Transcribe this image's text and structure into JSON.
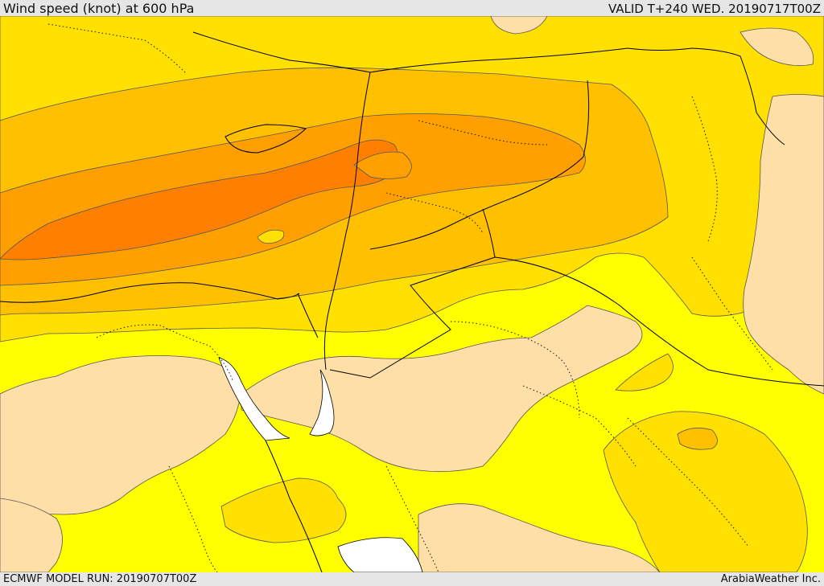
{
  "header": {
    "title": "Wind speed (knot) at 600 hPa",
    "valid": "VALID T+240 WED. 20190717T00Z"
  },
  "footer": {
    "model_run": "ECMWF MODEL RUN: 20190707T00Z",
    "brand": "ArabiaWeather Inc."
  },
  "map": {
    "colors": {
      "background_yellow": "#ffff00",
      "gold": "#ffe000",
      "light_orange": "#ffc000",
      "orange": "#ffa000",
      "deep_orange": "#ff8000",
      "calm_tan": "#ffdfa8",
      "sea_white": "#ffffff",
      "contour": "#555555",
      "border": "#000000"
    }
  }
}
